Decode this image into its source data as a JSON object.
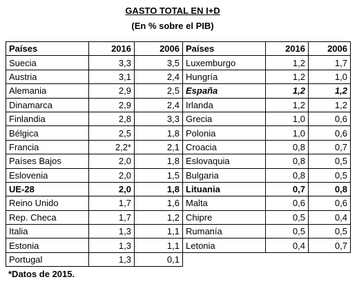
{
  "header": {
    "title": "GASTO TOTAL EN I+D",
    "subtitle": "(En % sobre el PIB)"
  },
  "table": {
    "left": {
      "columns": [
        "Países",
        "2016",
        "2006"
      ],
      "rows": [
        [
          "Suecia",
          "3,3",
          "3,5"
        ],
        [
          "Austria",
          "3,1",
          "2,4"
        ],
        [
          "Alemania",
          "2,9",
          "2,5"
        ],
        [
          "Dinamarca",
          "2,9",
          "2,4"
        ],
        [
          "Finlandia",
          "2,8",
          "3,3"
        ],
        [
          "Bélgica",
          "2,5",
          "1,8"
        ],
        [
          "Francia",
          "2,2*",
          "2,1"
        ],
        [
          "Países Bajos",
          "2,0",
          "1,8"
        ],
        [
          "Eslovenia",
          "2,0",
          "1,5"
        ],
        [
          "UE-28",
          "2,0",
          "1,8"
        ],
        [
          "Reino Unido",
          "1,7",
          "1,6"
        ],
        [
          "Rep. Checa",
          "1,7",
          "1,2"
        ],
        [
          "Italia",
          "1,3",
          "1,1"
        ],
        [
          "Estonia",
          "1,3",
          "1,1"
        ],
        [
          "Portugal",
          "1,3",
          "0,1"
        ]
      ]
    },
    "right": {
      "columns": [
        "Países",
        "2016",
        "2006"
      ],
      "rows": [
        [
          "Luxemburgo",
          "1,2",
          "1,7"
        ],
        [
          "Hungría",
          "1,2",
          "1,0"
        ],
        [
          "España",
          "1,2",
          "1,2"
        ],
        [
          "Irlanda",
          "1,2",
          "1,2"
        ],
        [
          "Grecia",
          "1,0",
          "0,6"
        ],
        [
          "Polonia",
          "1,0",
          "0,6"
        ],
        [
          "Croacia",
          "0,8",
          "0,7"
        ],
        [
          "Eslovaquia",
          "0,8",
          "0,5"
        ],
        [
          "Bulgaria",
          "0,8",
          "0,5"
        ],
        [
          "Lituania",
          "0,7",
          "0,8"
        ],
        [
          "Malta",
          "0,6",
          "0,6"
        ],
        [
          "Chipre",
          "0,5",
          "0,4"
        ],
        [
          "Rumanía",
          "0,5",
          "0,5"
        ],
        [
          "Letonia",
          "0,4",
          "0,7"
        ]
      ]
    }
  },
  "footnote": "*Datos de 2015."
}
